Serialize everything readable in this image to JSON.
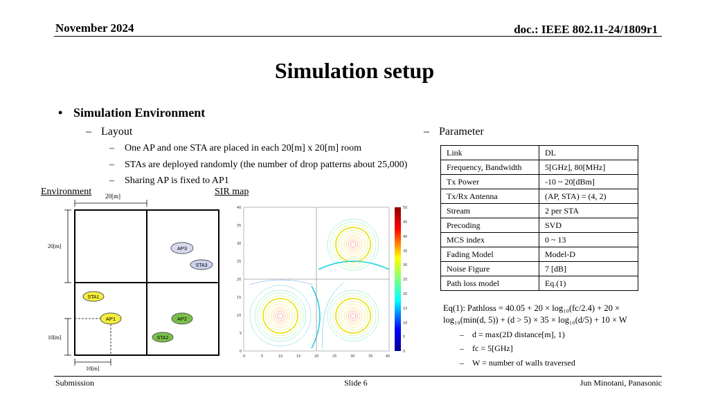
{
  "header": {
    "date": "November 2024",
    "doc": "doc.: IEEE 802.11-24/1809r1"
  },
  "title": "Simulation setup",
  "section": {
    "bullet": "Simulation Environment",
    "layout_heading": "Layout",
    "layout_items": [
      "One AP and one STA are placed in each 20[m] x 20[m] room",
      "STAs are deployed randomly (the number of drop patterns about 25,000)",
      "Sharing AP is fixed to AP1"
    ],
    "parameter_heading": "Parameter"
  },
  "figures": {
    "environment_label": "Environment",
    "sir_label": "SIR map",
    "dim_top": "20[m]",
    "dim_left_upper": "20[m]",
    "dim_left_lower": "10[m]",
    "dim_bottom": "10[m]",
    "nodes": {
      "ap1": "AP1",
      "ap2": "AP2",
      "ap3": "AP3",
      "sta1": "STA1",
      "sta2": "STA2",
      "sta3": "STA3"
    },
    "sir_y_ticks": [
      "40",
      "35",
      "30",
      "25",
      "20",
      "15",
      "10",
      "5",
      "0"
    ],
    "sir_x_ticks": [
      "0",
      "5",
      "10",
      "15",
      "20",
      "25",
      "30",
      "35",
      "40"
    ],
    "colorbar_ticks": [
      "50",
      "45",
      "40",
      "35",
      "30",
      "25",
      "20",
      "15",
      "10",
      "5",
      "0"
    ]
  },
  "params": [
    {
      "key": "Link",
      "value": "DL"
    },
    {
      "key": "Frequency, Bandwidth",
      "value": "5[GHz], 80[MHz]"
    },
    {
      "key": "Tx Power",
      "value": "-10 ~ 20[dBm]"
    },
    {
      "key": "Tx/Rx Antenna",
      "value": "(AP, STA) = (4, 2)"
    },
    {
      "key": "Stream",
      "value": "2 per STA"
    },
    {
      "key": "Precoding",
      "value": "SVD"
    },
    {
      "key": "MCS index",
      "value": "0 ~ 13"
    },
    {
      "key": "Fading Model",
      "value": "Model-D"
    },
    {
      "key": "Noise Figure",
      "value": "7 [dB]"
    },
    {
      "key": "Path loss model",
      "value": "Eq.(1)"
    }
  ],
  "equation": {
    "line1": "Eq(1): Pathloss = 40.05 + 20 × log₁₀(fc/2.4) + 20 ×",
    "line2": "log₁₀(min(d, 5)) + (d > 5) × 35 × log₁₀(d/5) + 10 × W",
    "notes": [
      "d = max(2D distance[m], 1)",
      "fc = 5[GHz]",
      "W = number of walls traversed"
    ]
  },
  "footer": {
    "left": "Submission",
    "center": "Slide 6",
    "right": "Jun Minotani, Panasonic"
  }
}
